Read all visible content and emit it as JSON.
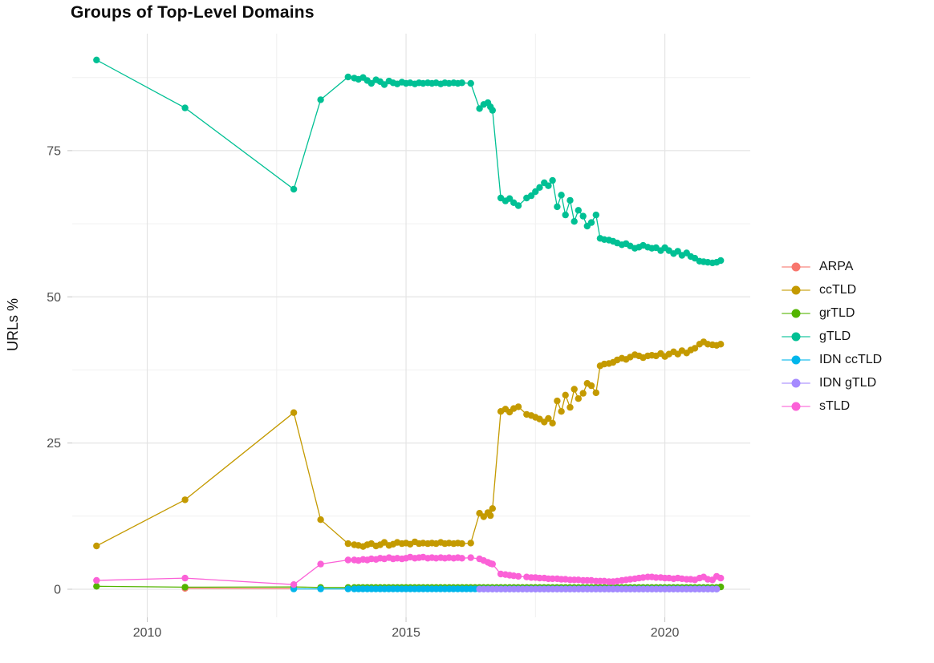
{
  "chart_data": {
    "type": "line",
    "title": "Groups of Top-Level Domains",
    "xlabel": "",
    "ylabel": "URLs %",
    "grid": true,
    "legend_position": "right",
    "xlim": [
      2008.55,
      2021.65
    ],
    "ylim": [
      -4.8,
      95.0
    ],
    "x_major_ticks": [
      2010,
      2015,
      2020
    ],
    "x_minor_ticks": [
      2012.5,
      2017.5
    ],
    "y_major_ticks": [
      0,
      25,
      50,
      75
    ],
    "y_minor_ticks": [
      12.5,
      37.5,
      62.5,
      87.5
    ],
    "series": [
      {
        "name": "ARPA",
        "color": "#F8766D",
        "points": [
          [
            2010.73,
            0.15
          ],
          [
            2012.83,
            0.08
          ]
        ]
      },
      {
        "name": "ccTLD",
        "color": "#C49A00",
        "points": [
          [
            2009.02,
            7.4
          ],
          [
            2010.73,
            15.3
          ],
          [
            2012.83,
            30.2
          ],
          [
            2013.35,
            11.9
          ],
          [
            2013.88,
            7.8
          ],
          [
            2014.0,
            7.6
          ],
          [
            2014.08,
            7.5
          ],
          [
            2014.17,
            7.3
          ],
          [
            2014.25,
            7.6
          ],
          [
            2014.33,
            7.8
          ],
          [
            2014.42,
            7.4
          ],
          [
            2014.5,
            7.6
          ],
          [
            2014.58,
            8.0
          ],
          [
            2014.67,
            7.5
          ],
          [
            2014.75,
            7.7
          ],
          [
            2014.83,
            8.0
          ],
          [
            2014.92,
            7.8
          ],
          [
            2015.0,
            7.9
          ],
          [
            2015.08,
            7.7
          ],
          [
            2015.17,
            8.1
          ],
          [
            2015.25,
            7.8
          ],
          [
            2015.33,
            7.9
          ],
          [
            2015.42,
            7.8
          ],
          [
            2015.5,
            7.9
          ],
          [
            2015.58,
            7.8
          ],
          [
            2015.67,
            8.0
          ],
          [
            2015.75,
            7.8
          ],
          [
            2015.83,
            7.9
          ],
          [
            2015.92,
            7.8
          ],
          [
            2016.0,
            7.9
          ],
          [
            2016.08,
            7.8
          ],
          [
            2016.25,
            7.9
          ],
          [
            2016.42,
            13.0
          ],
          [
            2016.5,
            12.4
          ],
          [
            2016.58,
            13.1
          ],
          [
            2016.63,
            12.6
          ],
          [
            2016.67,
            13.8
          ],
          [
            2016.83,
            30.4
          ],
          [
            2016.92,
            30.8
          ],
          [
            2017.0,
            30.3
          ],
          [
            2017.08,
            30.9
          ],
          [
            2017.17,
            31.2
          ],
          [
            2017.33,
            29.9
          ],
          [
            2017.42,
            29.7
          ],
          [
            2017.5,
            29.4
          ],
          [
            2017.58,
            29.1
          ],
          [
            2017.67,
            28.6
          ],
          [
            2017.75,
            29.2
          ],
          [
            2017.83,
            28.4
          ],
          [
            2017.92,
            32.2
          ],
          [
            2018.0,
            30.4
          ],
          [
            2018.08,
            33.2
          ],
          [
            2018.17,
            31.1
          ],
          [
            2018.25,
            34.2
          ],
          [
            2018.33,
            32.6
          ],
          [
            2018.42,
            33.5
          ],
          [
            2018.5,
            35.2
          ],
          [
            2018.58,
            34.8
          ],
          [
            2018.67,
            33.6
          ],
          [
            2018.75,
            38.2
          ],
          [
            2018.83,
            38.5
          ],
          [
            2018.92,
            38.6
          ],
          [
            2019.0,
            38.8
          ],
          [
            2019.08,
            39.2
          ],
          [
            2019.17,
            39.5
          ],
          [
            2019.25,
            39.3
          ],
          [
            2019.33,
            39.7
          ],
          [
            2019.42,
            40.1
          ],
          [
            2019.5,
            39.9
          ],
          [
            2019.58,
            39.6
          ],
          [
            2019.67,
            39.9
          ],
          [
            2019.75,
            40.0
          ],
          [
            2019.83,
            39.9
          ],
          [
            2019.92,
            40.3
          ],
          [
            2020.0,
            39.8
          ],
          [
            2020.08,
            40.2
          ],
          [
            2020.17,
            40.6
          ],
          [
            2020.25,
            40.2
          ],
          [
            2020.33,
            40.8
          ],
          [
            2020.42,
            40.4
          ],
          [
            2020.5,
            40.9
          ],
          [
            2020.58,
            41.2
          ],
          [
            2020.67,
            41.9
          ],
          [
            2020.75,
            42.3
          ],
          [
            2020.83,
            41.9
          ],
          [
            2020.92,
            41.8
          ],
          [
            2021.0,
            41.7
          ],
          [
            2021.08,
            41.9
          ]
        ]
      },
      {
        "name": "grTLD",
        "color": "#53B400",
        "points": [
          [
            2009.02,
            0.5
          ],
          [
            2010.73,
            0.35
          ],
          [
            2012.83,
            0.4
          ],
          [
            2013.35,
            0.3
          ],
          [
            2013.88,
            0.3
          ],
          {
            "from": 2014.0,
            "to": 2021.0,
            "step": 0.0833,
            "value": 0.3
          },
          [
            2021.08,
            0.4
          ]
        ]
      },
      {
        "name": "gTLD",
        "color": "#00C094",
        "points": [
          [
            2009.02,
            90.5
          ],
          [
            2010.73,
            82.3
          ],
          [
            2012.83,
            68.4
          ],
          [
            2013.35,
            83.7
          ],
          [
            2013.88,
            87.6
          ],
          [
            2014.0,
            87.4
          ],
          [
            2014.08,
            87.2
          ],
          [
            2014.17,
            87.5
          ],
          [
            2014.25,
            87.0
          ],
          [
            2014.33,
            86.5
          ],
          [
            2014.42,
            87.1
          ],
          [
            2014.5,
            86.8
          ],
          [
            2014.58,
            86.3
          ],
          [
            2014.67,
            86.9
          ],
          [
            2014.75,
            86.6
          ],
          [
            2014.83,
            86.4
          ],
          [
            2014.92,
            86.7
          ],
          [
            2015.0,
            86.5
          ],
          [
            2015.08,
            86.6
          ],
          [
            2015.17,
            86.4
          ],
          [
            2015.25,
            86.6
          ],
          [
            2015.33,
            86.5
          ],
          [
            2015.42,
            86.6
          ],
          [
            2015.5,
            86.5
          ],
          [
            2015.58,
            86.6
          ],
          [
            2015.67,
            86.4
          ],
          [
            2015.75,
            86.6
          ],
          [
            2015.83,
            86.5
          ],
          [
            2015.92,
            86.6
          ],
          [
            2016.0,
            86.5
          ],
          [
            2016.08,
            86.6
          ],
          [
            2016.25,
            86.5
          ],
          [
            2016.42,
            82.2
          ],
          [
            2016.5,
            82.9
          ],
          [
            2016.58,
            83.2
          ],
          [
            2016.63,
            82.5
          ],
          [
            2016.67,
            81.9
          ],
          [
            2016.83,
            66.9
          ],
          [
            2016.92,
            66.4
          ],
          [
            2017.0,
            66.8
          ],
          [
            2017.08,
            66.1
          ],
          [
            2017.17,
            65.6
          ],
          [
            2017.33,
            66.9
          ],
          [
            2017.42,
            67.3
          ],
          [
            2017.5,
            68.0
          ],
          [
            2017.58,
            68.7
          ],
          [
            2017.67,
            69.5
          ],
          [
            2017.75,
            69.0
          ],
          [
            2017.83,
            69.9
          ],
          [
            2017.92,
            65.4
          ],
          [
            2018.0,
            67.4
          ],
          [
            2018.08,
            64.0
          ],
          [
            2018.17,
            66.5
          ],
          [
            2018.25,
            62.9
          ],
          [
            2018.33,
            64.8
          ],
          [
            2018.42,
            63.8
          ],
          [
            2018.5,
            62.1
          ],
          [
            2018.58,
            62.7
          ],
          [
            2018.67,
            64.0
          ],
          [
            2018.75,
            60.0
          ],
          [
            2018.83,
            59.8
          ],
          [
            2018.92,
            59.7
          ],
          [
            2019.0,
            59.5
          ],
          [
            2019.08,
            59.2
          ],
          [
            2019.17,
            58.9
          ],
          [
            2019.25,
            59.1
          ],
          [
            2019.33,
            58.7
          ],
          [
            2019.42,
            58.3
          ],
          [
            2019.5,
            58.5
          ],
          [
            2019.58,
            58.8
          ],
          [
            2019.67,
            58.5
          ],
          [
            2019.75,
            58.3
          ],
          [
            2019.83,
            58.4
          ],
          [
            2019.92,
            57.9
          ],
          [
            2020.0,
            58.4
          ],
          [
            2020.08,
            57.9
          ],
          [
            2020.17,
            57.4
          ],
          [
            2020.25,
            57.8
          ],
          [
            2020.33,
            57.1
          ],
          [
            2020.42,
            57.5
          ],
          [
            2020.5,
            56.9
          ],
          [
            2020.58,
            56.6
          ],
          [
            2020.67,
            56.1
          ],
          [
            2020.75,
            56.0
          ],
          [
            2020.83,
            55.9
          ],
          [
            2020.92,
            55.8
          ],
          [
            2021.0,
            55.9
          ],
          [
            2021.08,
            56.2
          ]
        ]
      },
      {
        "name": "IDN ccTLD",
        "color": "#00B6EB",
        "points": [
          [
            2012.83,
            0.05
          ],
          [
            2013.35,
            0.05
          ],
          [
            2013.88,
            0.05
          ],
          {
            "from": 2014.0,
            "to": 2021.08,
            "step": 0.0833,
            "value": 0.05
          }
        ]
      },
      {
        "name": "IDN gTLD",
        "color": "#A58AFF",
        "points": [
          {
            "from": 2016.42,
            "to": 2021.08,
            "step": 0.0833,
            "value": 0.02
          }
        ]
      },
      {
        "name": "sTLD",
        "color": "#FB61D7",
        "points": [
          [
            2009.02,
            1.5
          ],
          [
            2010.73,
            1.9
          ],
          [
            2012.83,
            0.8
          ],
          [
            2013.35,
            4.3
          ],
          [
            2013.88,
            5.0
          ],
          [
            2014.0,
            5.0
          ],
          [
            2014.08,
            4.9
          ],
          [
            2014.17,
            5.1
          ],
          [
            2014.25,
            5.0
          ],
          [
            2014.33,
            5.2
          ],
          [
            2014.42,
            5.1
          ],
          [
            2014.5,
            5.3
          ],
          [
            2014.58,
            5.2
          ],
          [
            2014.67,
            5.4
          ],
          [
            2014.75,
            5.2
          ],
          [
            2014.83,
            5.3
          ],
          [
            2014.92,
            5.2
          ],
          [
            2015.0,
            5.3
          ],
          [
            2015.08,
            5.5
          ],
          [
            2015.17,
            5.3
          ],
          [
            2015.25,
            5.4
          ],
          [
            2015.33,
            5.5
          ],
          [
            2015.42,
            5.3
          ],
          [
            2015.5,
            5.4
          ],
          [
            2015.58,
            5.3
          ],
          [
            2015.67,
            5.4
          ],
          [
            2015.75,
            5.3
          ],
          [
            2015.83,
            5.4
          ],
          [
            2015.92,
            5.3
          ],
          [
            2016.0,
            5.4
          ],
          [
            2016.08,
            5.3
          ],
          [
            2016.25,
            5.4
          ],
          [
            2016.42,
            5.2
          ],
          [
            2016.5,
            4.9
          ],
          [
            2016.58,
            4.6
          ],
          [
            2016.63,
            4.4
          ],
          [
            2016.67,
            4.3
          ],
          [
            2016.83,
            2.6
          ],
          [
            2016.92,
            2.5
          ],
          [
            2017.0,
            2.4
          ],
          [
            2017.08,
            2.3
          ],
          [
            2017.17,
            2.2
          ],
          [
            2017.33,
            2.1
          ],
          [
            2017.42,
            2.0
          ],
          [
            2017.5,
            2.0
          ],
          [
            2017.58,
            1.9
          ],
          [
            2017.67,
            1.9
          ],
          [
            2017.75,
            1.8
          ],
          [
            2017.83,
            1.8
          ],
          [
            2017.92,
            1.8
          ],
          [
            2018.0,
            1.7
          ],
          [
            2018.08,
            1.7
          ],
          [
            2018.17,
            1.6
          ],
          [
            2018.25,
            1.6
          ],
          [
            2018.33,
            1.6
          ],
          [
            2018.42,
            1.5
          ],
          [
            2018.5,
            1.5
          ],
          [
            2018.58,
            1.5
          ],
          [
            2018.67,
            1.4
          ],
          [
            2018.75,
            1.4
          ],
          [
            2018.83,
            1.4
          ],
          [
            2018.92,
            1.3
          ],
          [
            2019.0,
            1.3
          ],
          [
            2019.08,
            1.4
          ],
          [
            2019.17,
            1.5
          ],
          [
            2019.25,
            1.6
          ],
          [
            2019.33,
            1.7
          ],
          [
            2019.42,
            1.8
          ],
          [
            2019.5,
            1.9
          ],
          [
            2019.58,
            2.0
          ],
          [
            2019.67,
            2.1
          ],
          [
            2019.75,
            2.1
          ],
          [
            2019.83,
            2.0
          ],
          [
            2019.92,
            2.0
          ],
          [
            2020.0,
            1.9
          ],
          [
            2020.08,
            1.9
          ],
          [
            2020.17,
            1.8
          ],
          [
            2020.25,
            1.9
          ],
          [
            2020.33,
            1.8
          ],
          [
            2020.42,
            1.7
          ],
          [
            2020.5,
            1.7
          ],
          [
            2020.58,
            1.6
          ],
          [
            2020.67,
            1.9
          ],
          [
            2020.75,
            2.1
          ],
          [
            2020.83,
            1.7
          ],
          [
            2020.92,
            1.6
          ],
          [
            2021.0,
            2.2
          ],
          [
            2021.08,
            1.9
          ]
        ]
      }
    ],
    "style": {
      "grid_major_color": "#e4e4e4",
      "grid_minor_color": "#f0f0f0",
      "tick_mark_color": "#c6c6c6",
      "tick_label_color": "#4d4d4d",
      "axis_title_color": "#111111"
    }
  }
}
